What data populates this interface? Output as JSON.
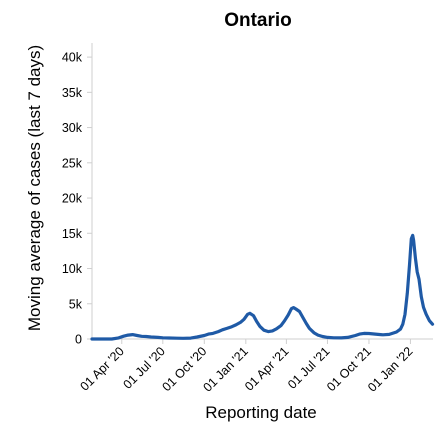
{
  "chart_data": {
    "type": "line",
    "title": "Ontario",
    "xlabel": "Reporting date",
    "ylabel": "Moving average of cases (last 7 days)",
    "x_tick_labels": [
      "01 Apr '20",
      "01 Jul '20",
      "01 Oct '20",
      "01 Jan '21",
      "01 Apr '21",
      "01 Jul '21",
      "01 Oct '21",
      "01 Jan '22"
    ],
    "y_tick_labels": [
      "0",
      "5k",
      "10k",
      "15k",
      "20k",
      "25k",
      "30k",
      "35k",
      "40k"
    ],
    "ylim": [
      0,
      42000
    ],
    "grid": false,
    "line_color": "#1f5aa6",
    "series": [
      {
        "x": [
          "2020-01-26",
          "2020-02-15",
          "2020-03-10",
          "2020-03-25",
          "2020-04-05",
          "2020-04-15",
          "2020-04-25",
          "2020-05-05",
          "2020-05-15",
          "2020-05-25",
          "2020-06-05",
          "2020-06-20",
          "2020-07-01",
          "2020-07-15",
          "2020-08-01",
          "2020-08-15",
          "2020-09-01",
          "2020-09-15",
          "2020-10-01",
          "2020-10-10",
          "2020-10-20",
          "2020-11-01",
          "2020-11-10",
          "2020-11-20",
          "2020-12-01",
          "2020-12-10",
          "2020-12-20",
          "2020-12-28",
          "2021-01-05",
          "2021-01-10",
          "2021-01-18",
          "2021-01-25",
          "2021-02-01",
          "2021-02-10",
          "2021-02-20",
          "2021-03-01",
          "2021-03-10",
          "2021-03-20",
          "2021-03-28",
          "2021-04-05",
          "2021-04-12",
          "2021-04-17",
          "2021-04-22",
          "2021-04-30",
          "2021-05-08",
          "2021-05-15",
          "2021-05-22",
          "2021-06-01",
          "2021-06-10",
          "2021-06-20",
          "2021-07-01",
          "2021-07-15",
          "2021-08-01",
          "2021-08-15",
          "2021-09-01",
          "2021-09-10",
          "2021-09-20",
          "2021-10-01",
          "2021-10-15",
          "2021-11-01",
          "2021-11-15",
          "2021-12-01",
          "2021-12-10",
          "2021-12-15",
          "2021-12-20",
          "2021-12-25",
          "2021-12-30",
          "2022-01-03",
          "2022-01-06",
          "2022-01-08",
          "2022-01-12",
          "2022-01-16",
          "2022-01-20",
          "2022-01-25",
          "2022-01-30",
          "2022-02-05",
          "2022-02-12",
          "2022-02-19"
        ],
        "values": [
          0,
          0,
          5,
          150,
          400,
          550,
          620,
          500,
          380,
          350,
          280,
          220,
          170,
          140,
          110,
          100,
          130,
          280,
          500,
          700,
          800,
          1050,
          1300,
          1500,
          1750,
          2000,
          2350,
          2800,
          3500,
          3650,
          3300,
          2500,
          1800,
          1250,
          1050,
          1150,
          1450,
          1900,
          2600,
          3400,
          4300,
          4450,
          4250,
          3900,
          3000,
          2200,
          1500,
          900,
          550,
          350,
          220,
          170,
          160,
          220,
          500,
          700,
          800,
          780,
          700,
          600,
          650,
          1000,
          1400,
          2100,
          3500,
          6500,
          10500,
          14200,
          14700,
          14000,
          11500,
          9500,
          8500,
          6000,
          4500,
          3500,
          2600,
          2100
        ]
      }
    ]
  }
}
